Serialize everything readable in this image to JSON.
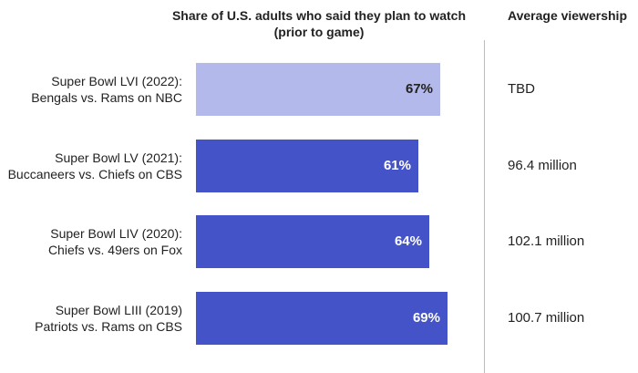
{
  "chart_data": {
    "type": "bar",
    "orientation": "horizontal",
    "title": "Share of U.S. adults who said they plan to watch (prior to game)",
    "secondary_column_title": "Average viewership",
    "unit": "%",
    "xlim": [
      0,
      100
    ],
    "rows": [
      {
        "line1": "Super Bowl LVI (2022):",
        "line2": "Bengals vs. Rams on NBC",
        "value": 67,
        "label": "67%",
        "viewership": "TBD",
        "color": "#b3b9ea",
        "label_color": "#222222"
      },
      {
        "line1": "Super Bowl LV (2021):",
        "line2": "Buccaneers vs. Chiefs on CBS",
        "value": 61,
        "label": "61%",
        "viewership": "96.4 million",
        "color": "#4553c9",
        "label_color": "#ffffff"
      },
      {
        "line1": "Super Bowl LIV (2020):",
        "line2": "Chiefs vs. 49ers on Fox",
        "value": 64,
        "label": "64%",
        "viewership": "102.1 million",
        "color": "#4553c9",
        "label_color": "#ffffff"
      },
      {
        "line1": "Super Bowl LIII (2019)",
        "line2": "Patriots vs. Rams on CBS",
        "value": 69,
        "label": "69%",
        "viewership": "100.7 million",
        "color": "#4553c9",
        "label_color": "#ffffff"
      }
    ],
    "grid": false,
    "legend": "none"
  },
  "header": {
    "share_line1": "Share of U.S. adults who said they plan to watch",
    "share_line2": "(prior to game)",
    "avg": "Average viewership"
  }
}
